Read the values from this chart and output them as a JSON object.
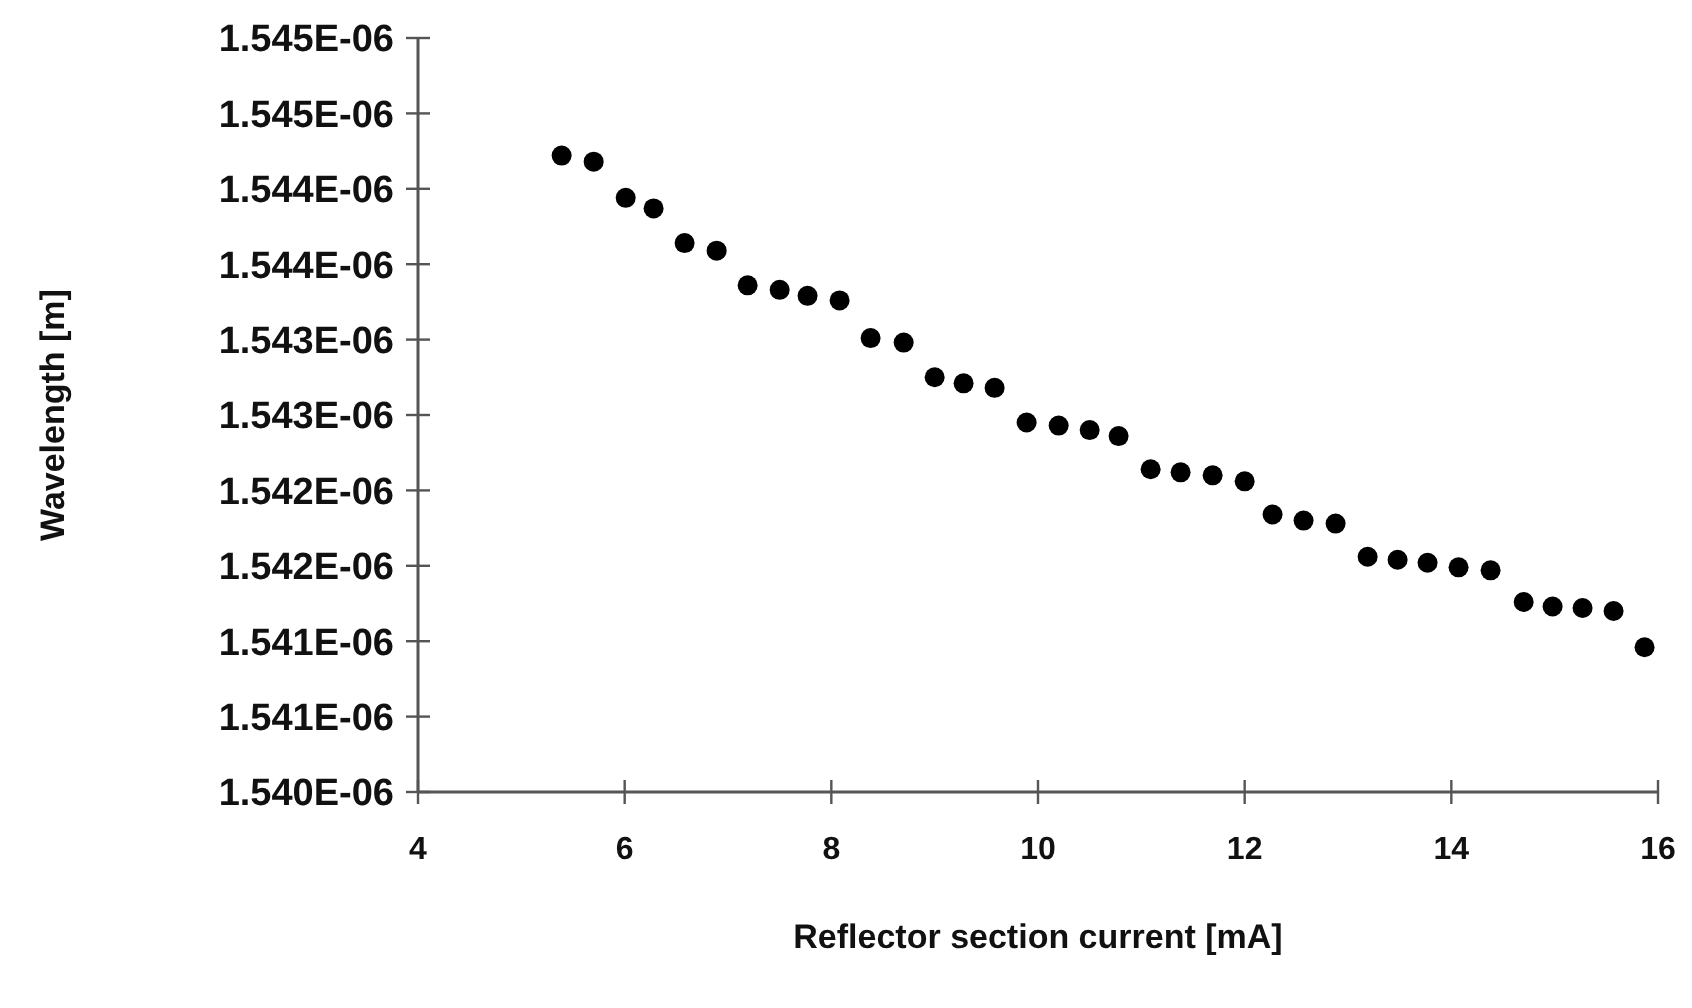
{
  "chart_data": {
    "type": "scatter",
    "xlabel": "Reflector section current [mA]",
    "ylabel": "Wavelength [m]",
    "x": [
      5.39,
      5.7,
      6.01,
      6.28,
      6.58,
      6.89,
      7.19,
      7.5,
      7.77,
      8.08,
      8.38,
      8.7,
      9.0,
      9.28,
      9.58,
      9.89,
      10.2,
      10.5,
      10.78,
      11.09,
      11.38,
      11.69,
      12.0,
      12.27,
      12.57,
      12.88,
      13.19,
      13.48,
      13.77,
      14.07,
      14.38,
      14.7,
      14.98,
      15.27,
      15.57,
      15.87
    ],
    "series": [
      {
        "color": "#000000",
        "values": [
          1.54422e-06,
          1.54418e-06,
          1.54394e-06,
          1.54387e-06,
          1.54364e-06,
          1.54359e-06,
          1.54336e-06,
          1.54333e-06,
          1.54329e-06,
          1.54326e-06,
          1.54301e-06,
          1.54298e-06,
          1.54275e-06,
          1.54271e-06,
          1.54268e-06,
          1.54245e-06,
          1.54243e-06,
          1.5424e-06,
          1.54236e-06,
          1.54214e-06,
          1.54212e-06,
          1.5421e-06,
          1.54206e-06,
          1.54184e-06,
          1.5418e-06,
          1.54178e-06,
          1.54156e-06,
          1.54154e-06,
          1.54152e-06,
          1.54149e-06,
          1.54147e-06,
          1.54126e-06,
          1.54123e-06,
          1.54122e-06,
          1.5412e-06,
          1.54096e-06
        ]
      }
    ],
    "marker": "circle",
    "xlim": [
      4,
      16
    ],
    "xticks": [
      4,
      6,
      8,
      10,
      12,
      14,
      16
    ],
    "ylim": [
      1.54e-06,
      1.545e-06
    ],
    "yticks": [
      {
        "value": 1.54e-06,
        "label": "1.540E-06"
      },
      {
        "value": 1.5405e-06,
        "label": "1.541E-06"
      },
      {
        "value": 1.541e-06,
        "label": "1.541E-06"
      },
      {
        "value": 1.5415e-06,
        "label": "1.542E-06"
      },
      {
        "value": 1.542e-06,
        "label": "1.542E-06"
      },
      {
        "value": 1.5425e-06,
        "label": "1.543E-06"
      },
      {
        "value": 1.543e-06,
        "label": "1.543E-06"
      },
      {
        "value": 1.5435e-06,
        "label": "1.544E-06"
      },
      {
        "value": 1.544e-06,
        "label": "1.544E-06"
      },
      {
        "value": 1.5445e-06,
        "label": "1.545E-06"
      },
      {
        "value": 1.545e-06,
        "label": "1.545E-06"
      }
    ],
    "grid": false
  }
}
